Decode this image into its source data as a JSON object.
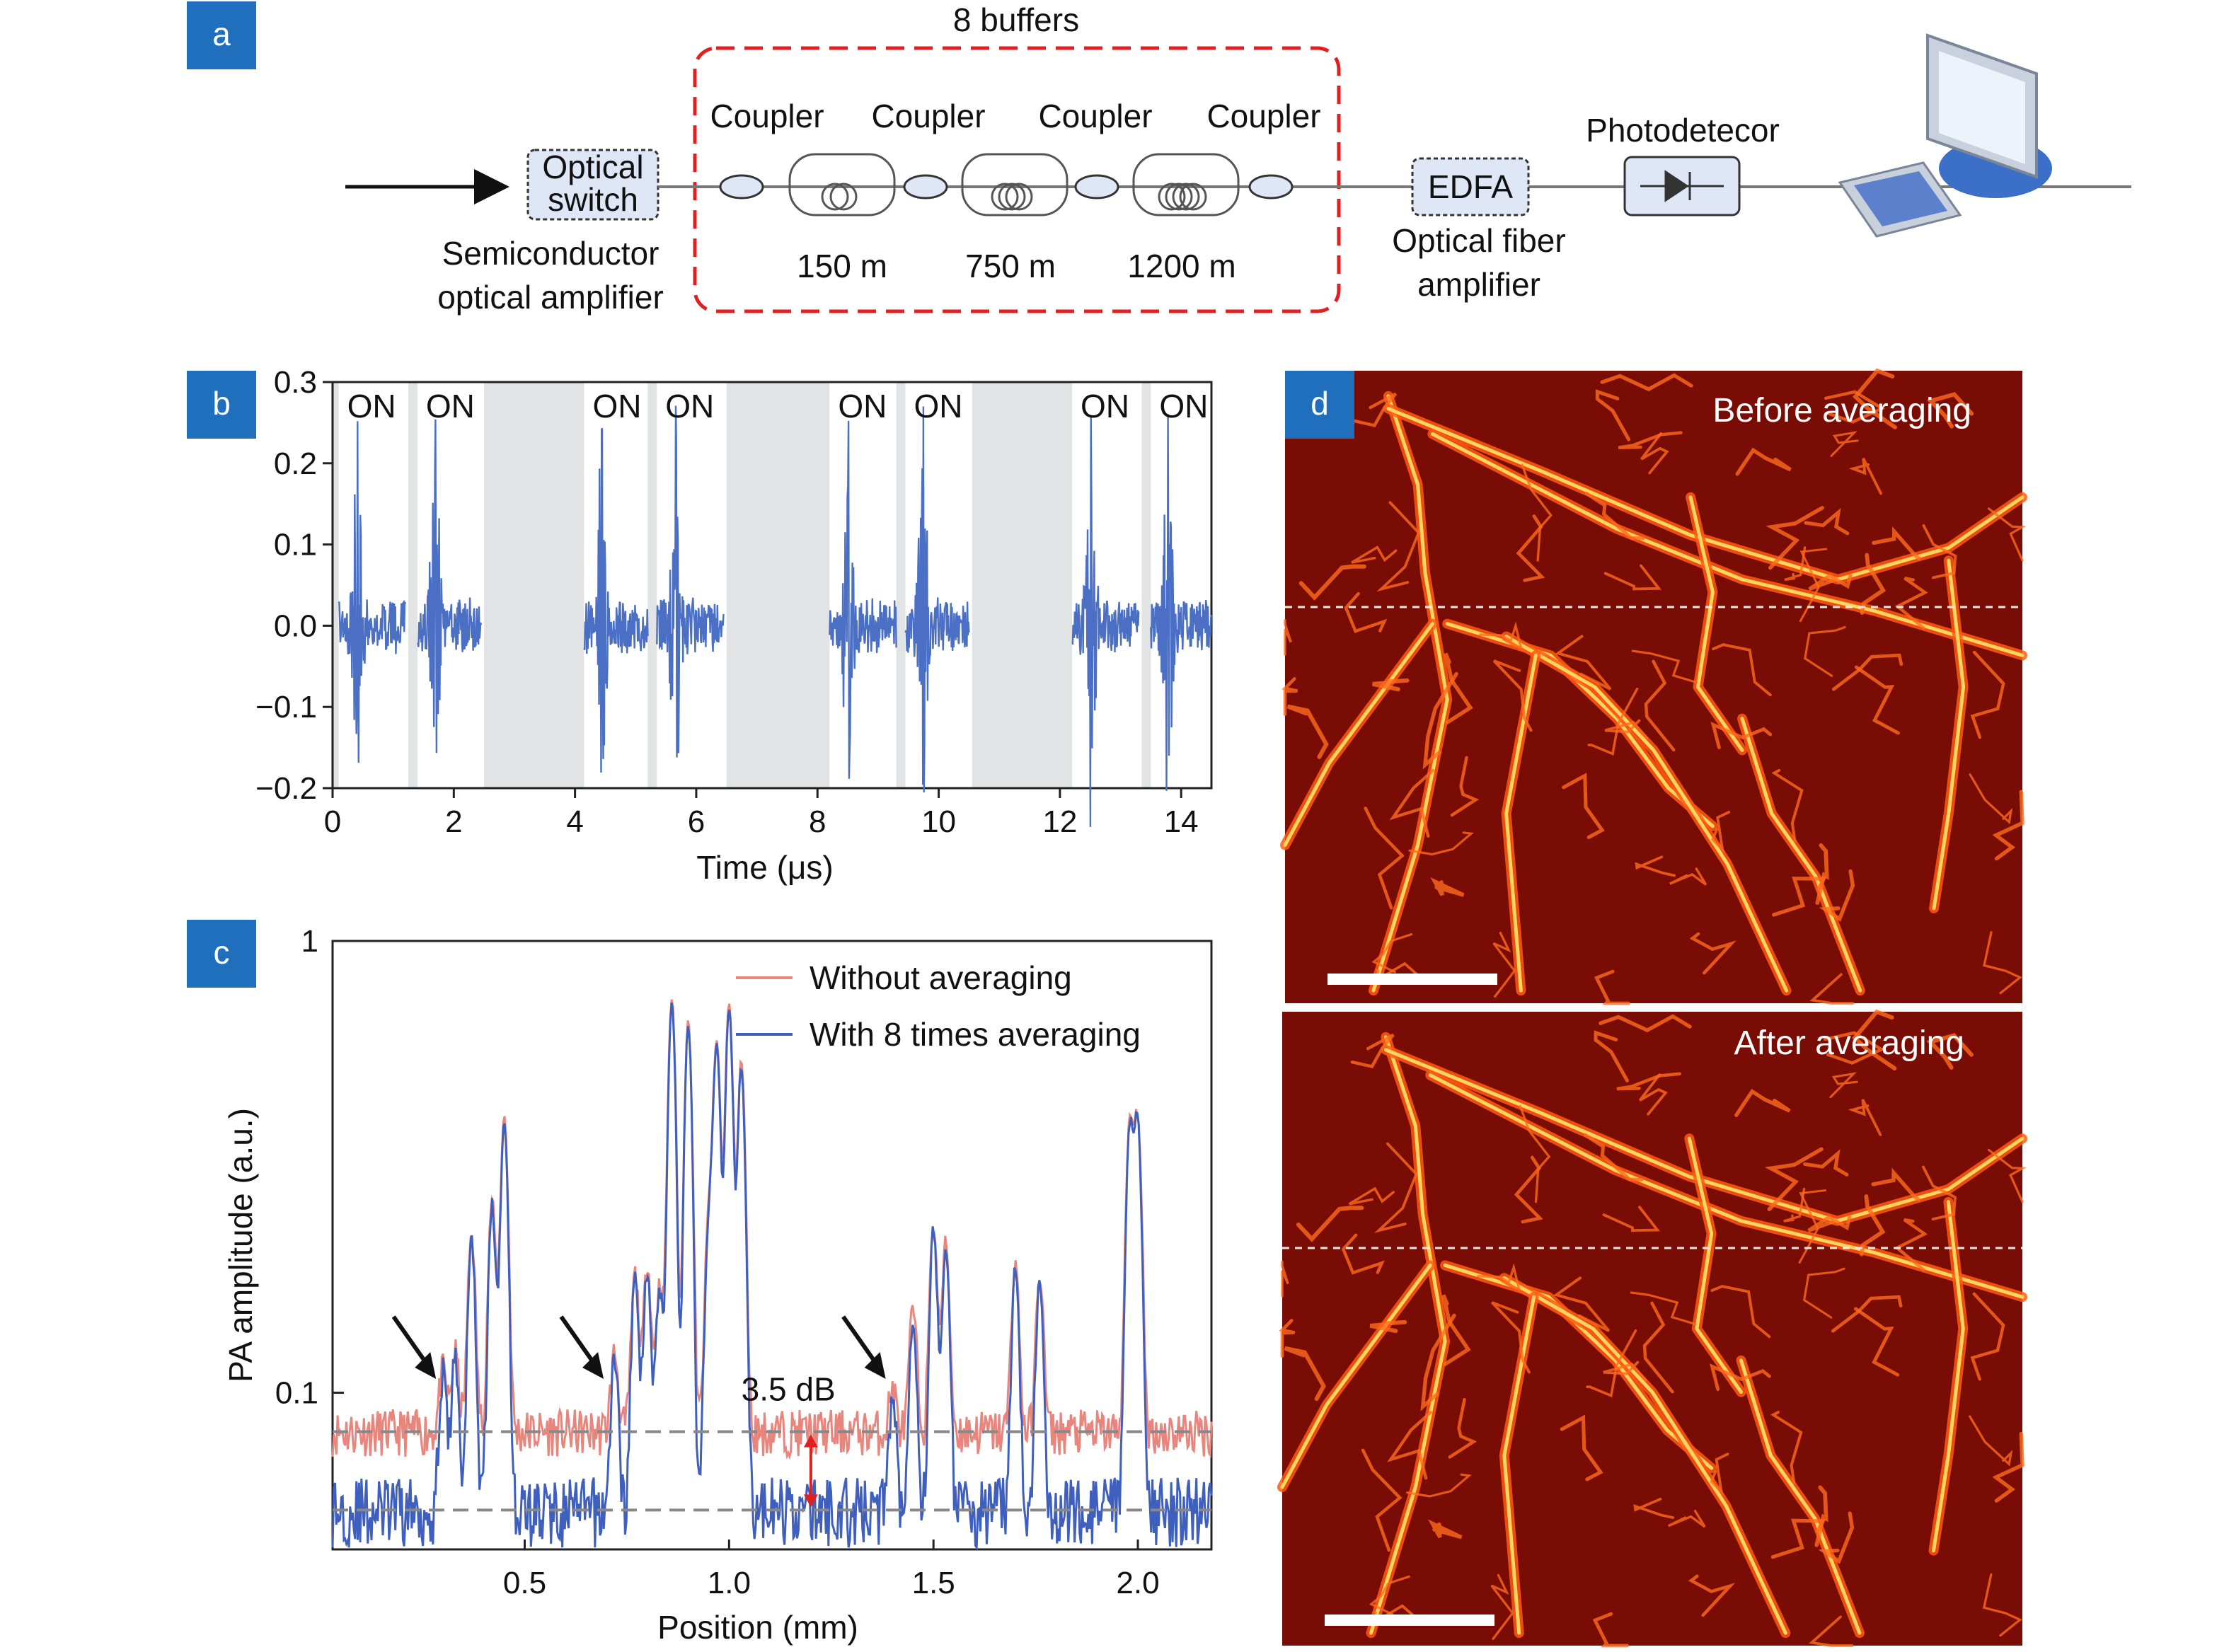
{
  "panels": {
    "a": "a",
    "b": "b",
    "c": "c",
    "d": "d"
  },
  "colors": {
    "tag_blue": "#1f6fbd",
    "signal_blue": "#4a6fc4",
    "without_avg": "#e8867e",
    "with_avg": "#3f5fbf",
    "dashed_red": "#e02020",
    "gate_gray": "#e2e3e5",
    "component_fill": "#dfe6f5",
    "photo_bg": "#7a0c06"
  },
  "schematic": {
    "buffers_label": "8 buffers",
    "optical_switch": [
      "Optical",
      "switch"
    ],
    "soa_label": [
      "Semiconductor",
      "optical amplifier"
    ],
    "couplers": [
      "Coupler",
      "Coupler",
      "Coupler",
      "Coupler"
    ],
    "delays": [
      "150 m",
      "750 m",
      "1200 m"
    ],
    "edfa": "EDFA",
    "edfa_caption": [
      "Optical fiber",
      "amplifier"
    ],
    "photodetector": "Photodetecor",
    "icons": [
      "arrow-right-icon",
      "optical-switch-box",
      "coupler-icon",
      "fiber-coil-icon",
      "edfa-box",
      "photodiode-icon",
      "computer-icon"
    ]
  },
  "chart_data": [
    {
      "id": "b",
      "type": "line",
      "xlabel": "Time (μs)",
      "ylabel": "",
      "xlim": [
        0,
        14.5
      ],
      "ylim": [
        -0.2,
        0.3
      ],
      "xticks": [
        0,
        2,
        4,
        6,
        8,
        10,
        12,
        14
      ],
      "yticks": [
        -0.2,
        -0.1,
        0.0,
        0.1,
        0.2,
        0.3
      ],
      "ytick_labels": [
        "−0.2",
        "−0.1",
        "0.0",
        "0.1",
        "0.2",
        "0.3"
      ],
      "on_labels": [
        "ON",
        "ON",
        "ON",
        "ON",
        "ON",
        "ON",
        "ON",
        "ON"
      ],
      "on_windows": [
        [
          0.1,
          1.2
        ],
        [
          1.4,
          2.45
        ],
        [
          4.15,
          5.2
        ],
        [
          5.35,
          6.45
        ],
        [
          8.2,
          9.3
        ],
        [
          9.45,
          10.5
        ],
        [
          12.2,
          13.3
        ],
        [
          13.5,
          14.5
        ]
      ],
      "gray_gaps": [
        [
          0.0,
          0.1
        ],
        [
          1.25,
          1.4
        ],
        [
          2.5,
          4.15
        ],
        [
          5.2,
          5.35
        ],
        [
          6.5,
          8.2
        ],
        [
          9.3,
          9.45
        ],
        [
          10.55,
          12.2
        ],
        [
          13.35,
          13.5
        ]
      ],
      "series": [
        {
          "values": []
        }
      ]
    },
    {
      "id": "c",
      "type": "line",
      "xlabel": "Position (mm)",
      "ylabel": "PA amplitude (a.u.)",
      "yscale": "log",
      "xlim": [
        0.03,
        2.18
      ],
      "ylim": [
        0.045,
        1.0
      ],
      "xticks": [
        0.5,
        1.0,
        1.5,
        2.0
      ],
      "xtick_labels": [
        "0.5",
        "1.0",
        "1.5",
        "2.0"
      ],
      "yticks": [
        0.1,
        1
      ],
      "ytick_labels": [
        "0.1",
        "1"
      ],
      "legend_position": "top-right",
      "annotation": "3.5 dB",
      "noise_floor_without": 0.082,
      "noise_floor_with": 0.055,
      "arrow_positions": [
        0.29,
        0.7,
        1.39
      ],
      "peaks": [
        {
          "x": 0.3,
          "y": 0.11
        },
        {
          "x": 0.33,
          "y": 0.12
        },
        {
          "x": 0.37,
          "y": 0.22
        },
        {
          "x": 0.42,
          "y": 0.26
        },
        {
          "x": 0.45,
          "y": 0.4
        },
        {
          "x": 0.72,
          "y": 0.12
        },
        {
          "x": 0.77,
          "y": 0.18
        },
        {
          "x": 0.8,
          "y": 0.19
        },
        {
          "x": 0.83,
          "y": 0.17
        },
        {
          "x": 0.86,
          "y": 0.73
        },
        {
          "x": 0.9,
          "y": 0.65
        },
        {
          "x": 0.95,
          "y": 0.23
        },
        {
          "x": 0.97,
          "y": 0.58
        },
        {
          "x": 1.0,
          "y": 0.71
        },
        {
          "x": 1.03,
          "y": 0.53
        },
        {
          "x": 1.4,
          "y": 0.1
        },
        {
          "x": 1.45,
          "y": 0.15
        },
        {
          "x": 1.5,
          "y": 0.23
        },
        {
          "x": 1.53,
          "y": 0.21
        },
        {
          "x": 1.7,
          "y": 0.19
        },
        {
          "x": 1.76,
          "y": 0.18
        },
        {
          "x": 1.98,
          "y": 0.38
        },
        {
          "x": 2.0,
          "y": 0.39
        }
      ],
      "series": [
        {
          "name": "Without averaging",
          "values": []
        },
        {
          "name": "With 8 times averaging",
          "values": []
        }
      ]
    }
  ],
  "photos": {
    "before": "Before averaging",
    "after": "After averaging"
  }
}
